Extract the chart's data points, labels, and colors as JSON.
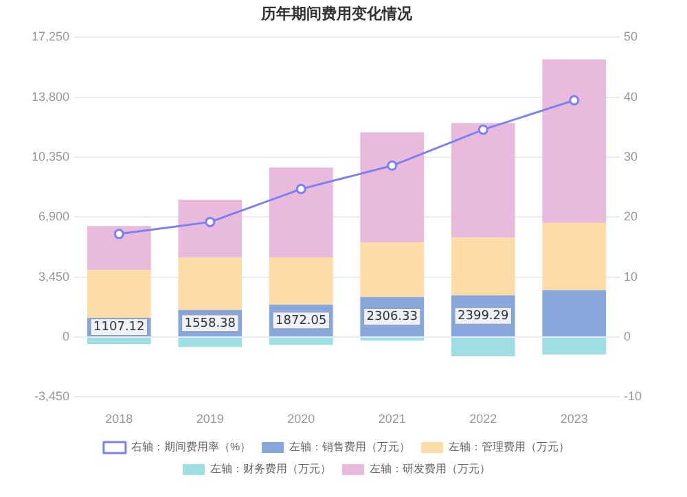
{
  "chart_data": {
    "type": "bar",
    "title": "历年期间费用变化情况",
    "stacked": true,
    "categories": [
      "2018",
      "2019",
      "2020",
      "2021",
      "2022",
      "2023"
    ],
    "series": [
      {
        "name": "左轴：销售费用（万元）",
        "color": "#86a6dc",
        "values": [
          1107.12,
          1558.38,
          1872.05,
          2306.33,
          2399.29,
          2700
        ],
        "value_labels": [
          "1107.12",
          "1558.38",
          "1872.05",
          "2306.33",
          "2399.29",
          null
        ]
      },
      {
        "name": "左轴：管理费用（万元）",
        "color": "#fddca8",
        "values": [
          2760,
          3020,
          2710,
          3150,
          3320,
          3870
        ]
      },
      {
        "name": "左轴：财务费用（万元）",
        "color": "#9fdfe3",
        "values": [
          -400,
          -570,
          -450,
          -200,
          -1100,
          -1000
        ]
      },
      {
        "name": "左轴：研发费用（万元）",
        "color": "#e8badb",
        "values": [
          2530,
          3330,
          5180,
          6330,
          6600,
          9410
        ]
      },
      {
        "name": "右轴：期间费用率（%）",
        "color": "#7c80f2",
        "type": "line",
        "axis": "y2",
        "marker": "circle",
        "values": [
          17.2,
          19.2,
          24.7,
          28.6,
          34.6,
          39.5
        ]
      }
    ],
    "ylim": [
      -3450,
      17250
    ],
    "yticks": [
      {
        "value": -3450,
        "label": "-3,450"
      },
      0,
      {
        "value": 3450,
        "label": "3,450"
      },
      {
        "value": 6900,
        "label": "6,900"
      },
      {
        "value": 10350,
        "label": "10,350"
      },
      {
        "value": 13800,
        "label": "13,800"
      },
      {
        "value": 17250,
        "label": "17,250"
      }
    ],
    "y2lim": [
      -10,
      50
    ],
    "y2ticks": [
      -10,
      0,
      10,
      20,
      30,
      40,
      50
    ],
    "grid": "y",
    "legend": "bottom"
  }
}
